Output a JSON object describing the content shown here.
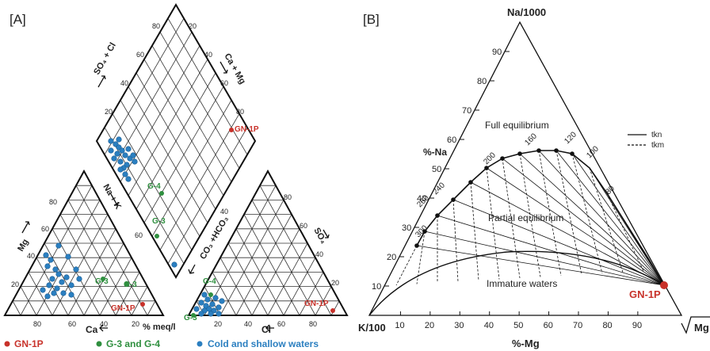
{
  "panels": {
    "a": {
      "tag": "[A]",
      "axis_titles": {
        "so4_cl": "SO₄ + Cl",
        "ca_mg": "Ca + Mg",
        "na_k": "Na + K",
        "co3_hco3": "CO₃ +HCO₃",
        "mg": "Mg",
        "so4": "SO₄",
        "ca": "Ca",
        "cl": "Cl",
        "meq": "% meq/l"
      },
      "sample_labels": {
        "gn1p_diamond": "GN-1P",
        "g4_diamond": "G-4",
        "g3_diamond": "G-3",
        "g3_left": "G-3",
        "g3_left_b": "G-3",
        "gn1p_left": "GN-1P",
        "g4_right": "G-4",
        "g3_right": "G-3",
        "gn1p_right": "GN-1P"
      },
      "ticks": {
        "d80": "80",
        "d60": "60",
        "d40": "40",
        "d20": "20",
        "e80": "80",
        "e60": "60",
        "e40": "40",
        "e20": "20",
        "n60": "60",
        "n40": "40",
        "l80": "80",
        "l60": "60",
        "l40": "40",
        "l20": "20",
        "lb80": "80",
        "lb60": "60",
        "lb40": "40",
        "lb20": "20",
        "r80": "80",
        "r60": "60",
        "r40": "40",
        "r20": "20",
        "rb20": "20",
        "rb40": "40",
        "rb60": "60",
        "rb80": "80"
      }
    },
    "b": {
      "tag": "[B]",
      "apex_top": "Na/1000",
      "apex_left": "K/100",
      "apex_right": "Mg",
      "ylabel": "%-Na",
      "xlabel": "%-Mg",
      "region_full": "Full equilibrium",
      "region_partial": "Partial equilibrium",
      "region_immature": "Immature waters",
      "sample": "GN-1P",
      "legend": {
        "tkn": "tkn",
        "tkm": "tkm"
      },
      "x_ticks": [
        "10",
        "20",
        "30",
        "40",
        "50",
        "60",
        "70",
        "80",
        "90"
      ],
      "na_ticks": [
        "10",
        "20",
        "30",
        "40",
        "50",
        "60",
        "70",
        "80",
        "90"
      ],
      "temp_labels": [
        "300",
        "260",
        "240",
        "200",
        "160",
        "120",
        "100",
        "80"
      ]
    }
  },
  "legend": {
    "gn1p": "GN-1P",
    "g3g4": "G-3 and G-4",
    "cold": "Cold and shallow waters"
  },
  "colors": {
    "red": "#c8322a",
    "green": "#2f8f3f",
    "blue": "#2b7fc0"
  }
}
